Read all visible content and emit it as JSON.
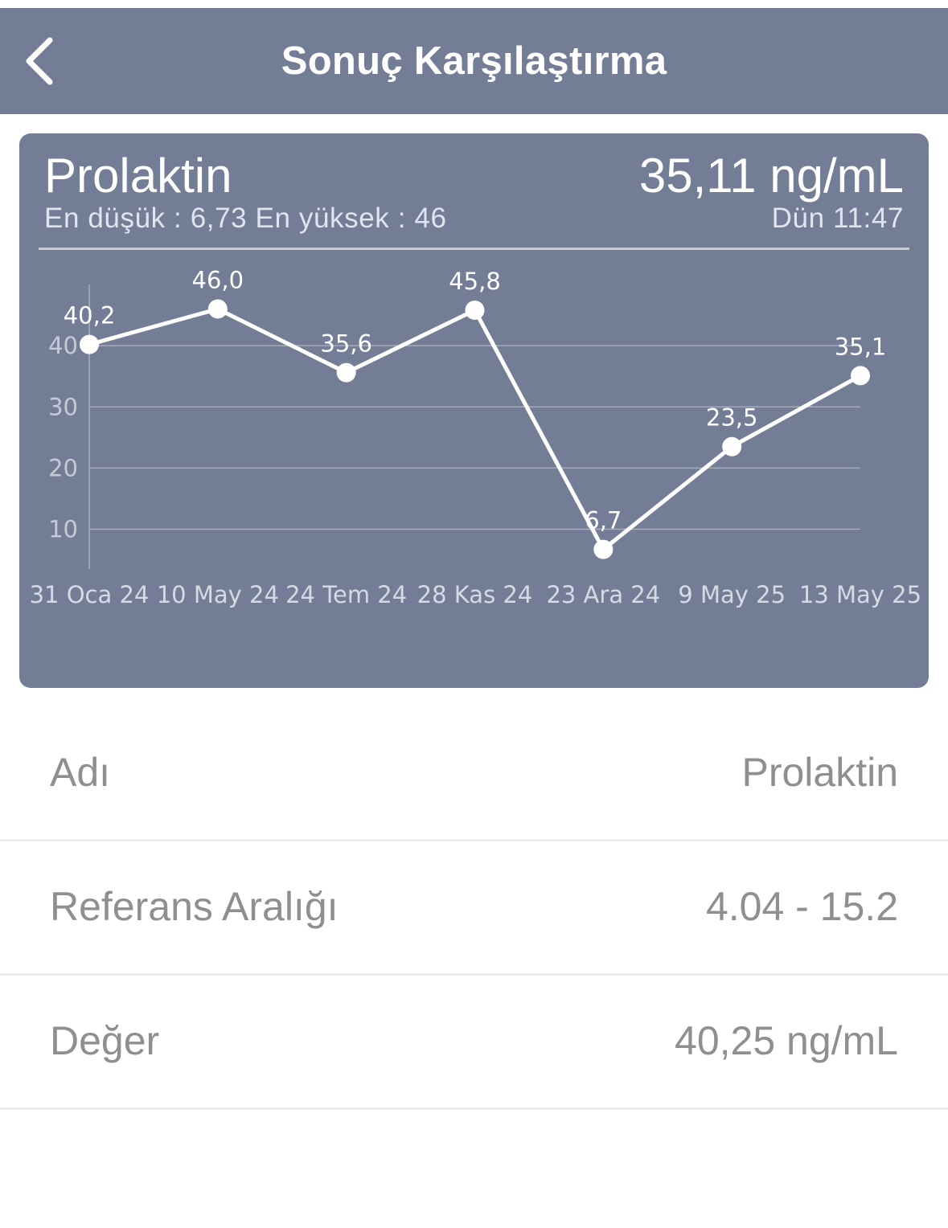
{
  "header": {
    "title": "Sonuç Karşılaştırma",
    "back_icon": "chevron-left-icon"
  },
  "summary": {
    "name": "Prolaktin",
    "latest_value": "35,11 ng/mL",
    "range_text": "En düşük : 6,73 En yüksek : 46",
    "time": "Dün 11:47"
  },
  "colors": {
    "header_bg": "#737d96",
    "card_bg": "#737d96",
    "line": "#ffffff",
    "muted_text": "#8e8e93"
  },
  "chart_data": {
    "type": "line",
    "x": [
      "31 Oca 24",
      "10 May 24",
      "24 Tem 24",
      "28 Kas 24",
      "23 Ara 24",
      "9 May 25",
      "13 May 25"
    ],
    "tick_labels": [
      "31 Oca 24",
      "10 May 24",
      "24 Tem 24",
      "28 Kas 24",
      "23 Ara 24",
      "9 May 25",
      "13 May 25"
    ],
    "values": [
      40.2,
      46.0,
      35.6,
      45.8,
      6.7,
      23.5,
      35.1
    ],
    "data_labels": [
      "40,2",
      "46,0",
      "35,6",
      "45,8",
      "6,7",
      "23,5",
      "35,1"
    ],
    "yticks": [
      "10",
      "20",
      "30",
      "40"
    ],
    "ylim": [
      3.5,
      50
    ],
    "grid": true,
    "title": "",
    "xlabel": "",
    "ylabel": ""
  },
  "details": [
    {
      "label": "Adı",
      "value": "Prolaktin"
    },
    {
      "label": "Referans Aralığı",
      "value": "4.04 - 15.2"
    },
    {
      "label": "Değer",
      "value": "40,25 ng/mL"
    }
  ]
}
